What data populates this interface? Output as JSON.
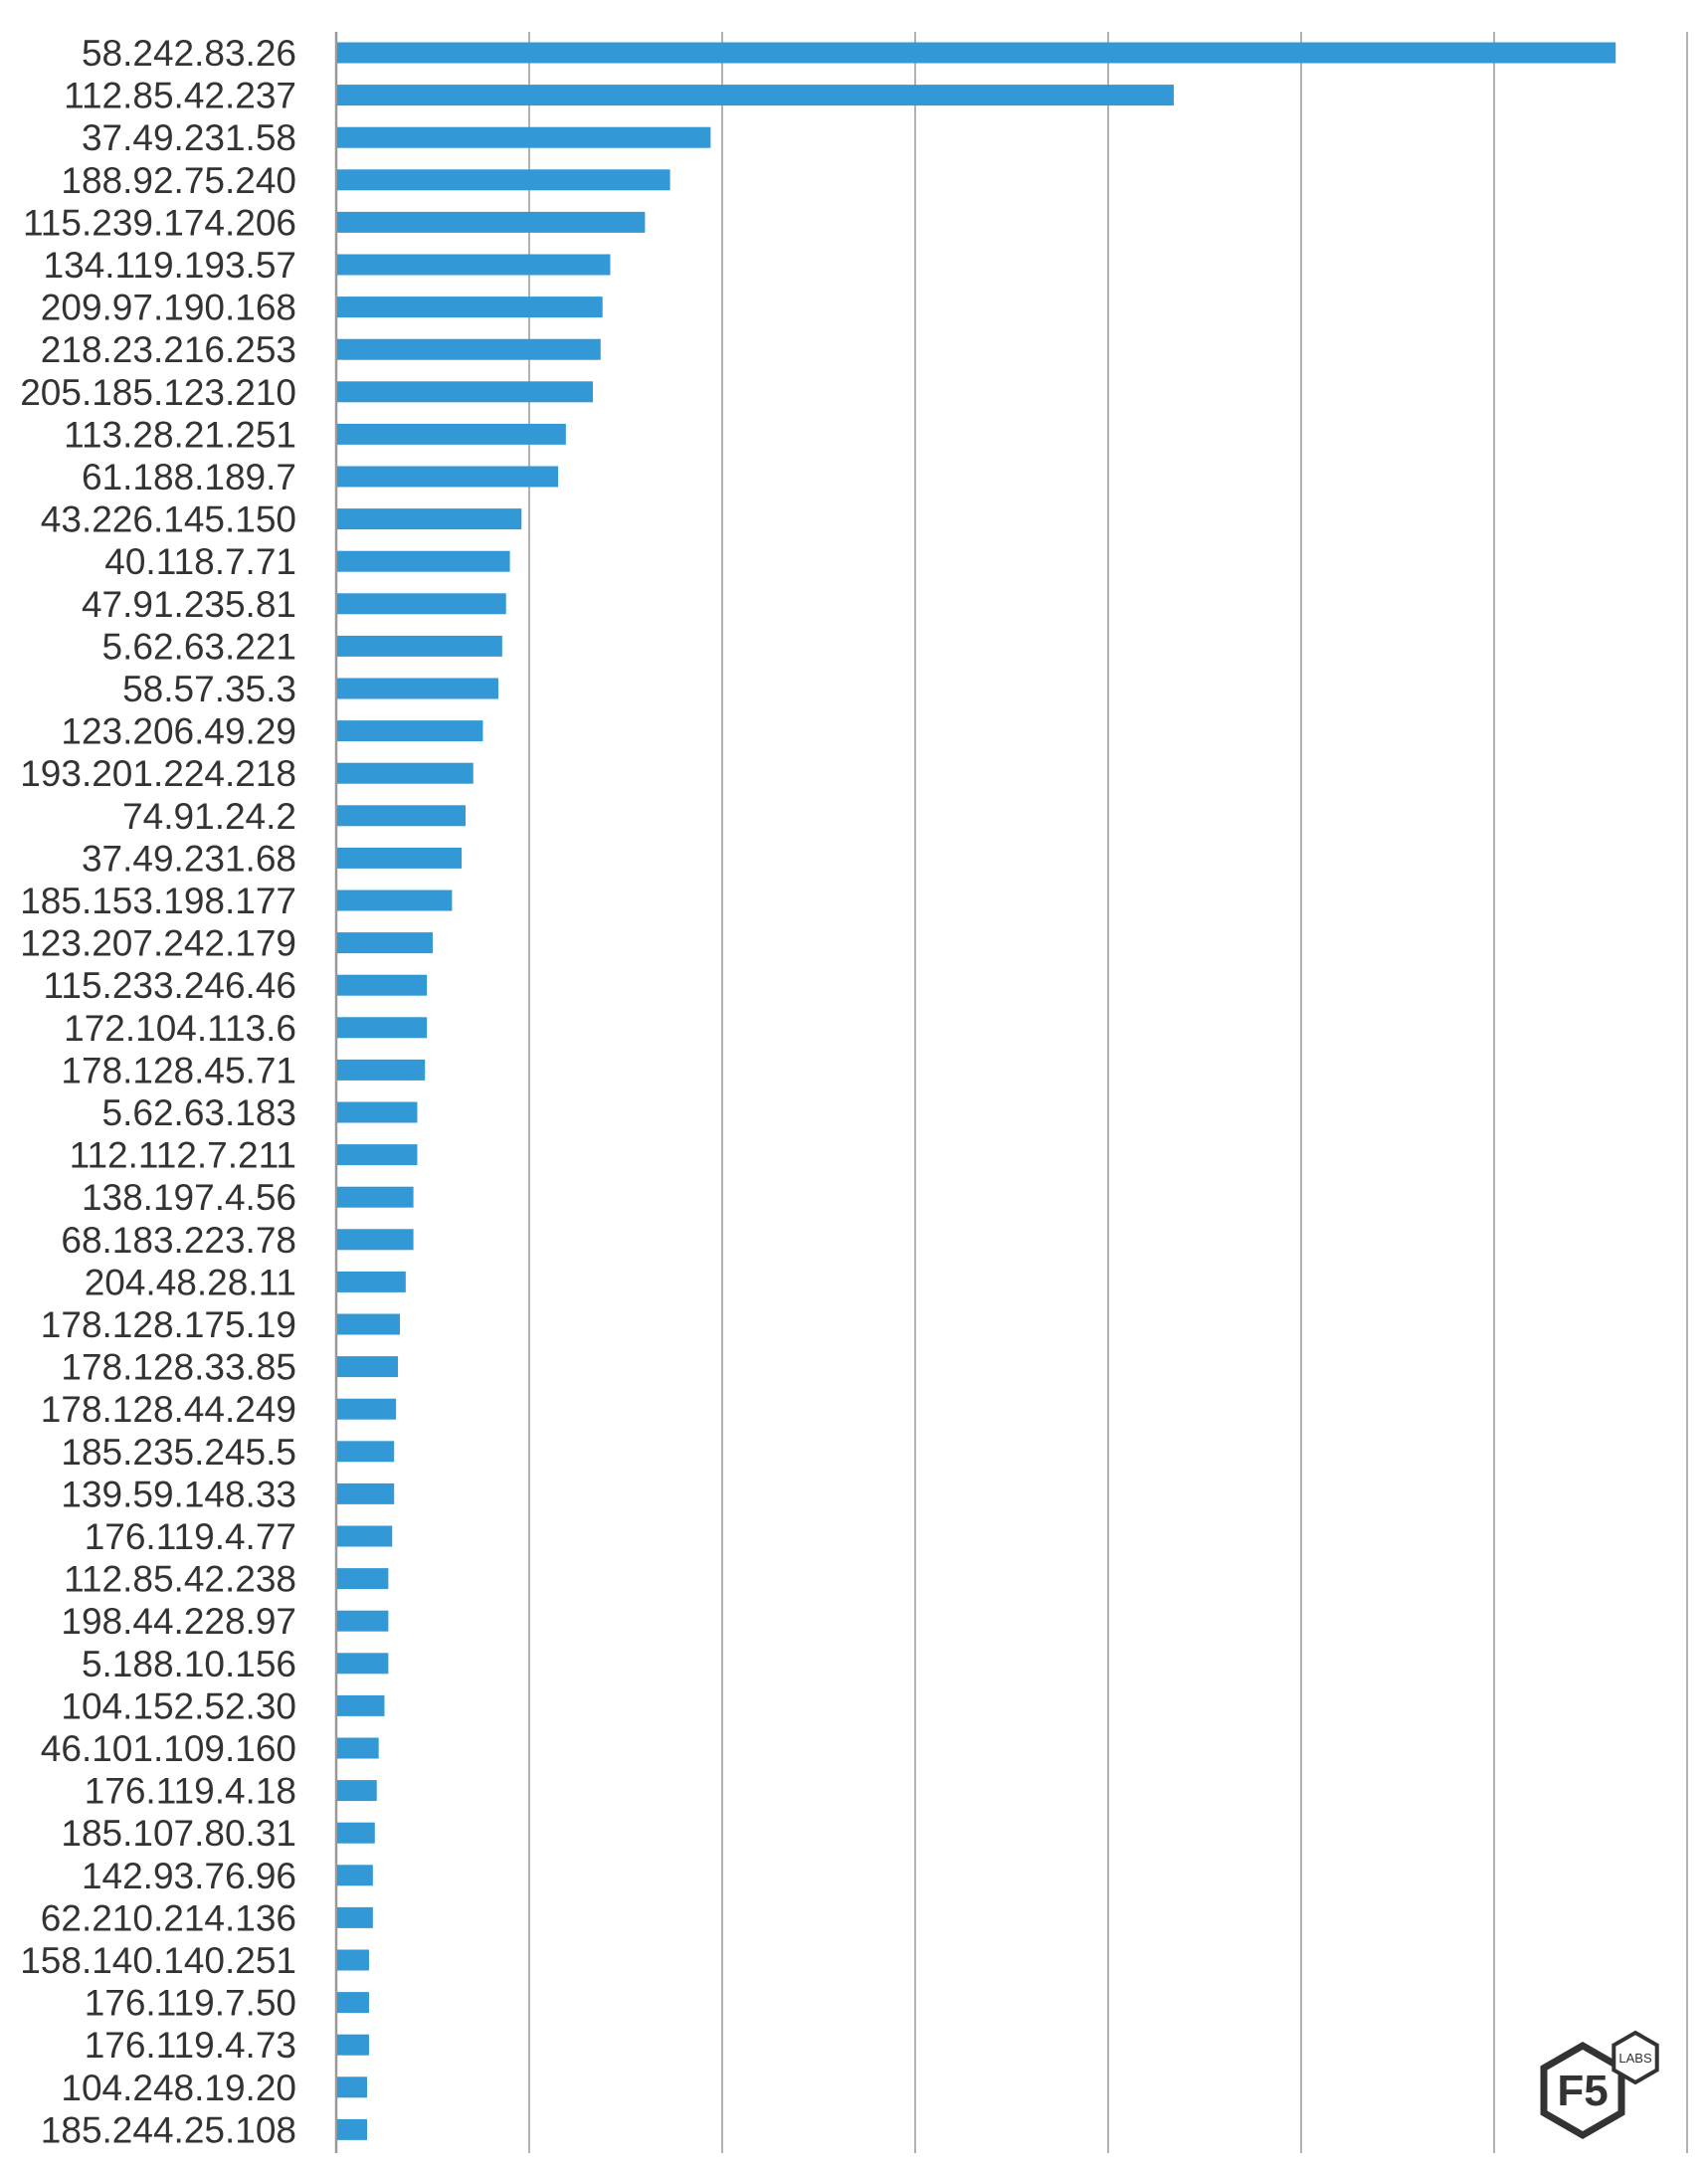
{
  "chart_data": {
    "type": "bar",
    "orientation": "horizontal",
    "title": "",
    "xlabel": "",
    "ylabel": "",
    "x_tick_labels_shown": false,
    "grid": "vertical",
    "xlim": [
      0,
      7
    ],
    "bar_color": "#3399d6",
    "gridline_color": "#999999",
    "label_color": "#333333",
    "categories": [
      "58.242.83.26",
      "112.85.42.237",
      "37.49.231.58",
      "188.92.75.240",
      "115.239.174.206",
      "134.119.193.57",
      "209.97.190.168",
      "218.23.216.253",
      "205.185.123.210",
      "113.28.21.251",
      "61.188.189.7",
      "43.226.145.150",
      "40.118.7.71",
      "47.91.235.81",
      "5.62.63.221",
      "58.57.35.3",
      "123.206.49.29",
      "193.201.224.218",
      "74.91.24.2",
      "37.49.231.68",
      "185.153.198.177",
      "123.207.242.179",
      "115.233.246.46",
      "172.104.113.6",
      "178.128.45.71",
      "5.62.63.183",
      "112.112.7.211",
      "138.197.4.56",
      "68.183.223.78",
      "204.48.28.11",
      "178.128.175.19",
      "178.128.33.85",
      "178.128.44.249",
      "185.235.245.5",
      "139.59.148.33",
      "176.119.4.77",
      "112.85.42.238",
      "198.44.228.97",
      "5.188.10.156",
      "104.152.52.30",
      "46.101.109.160",
      "176.119.4.18",
      "185.107.80.31",
      "142.93.76.96",
      "62.210.214.136",
      "158.140.140.251",
      "176.119.7.50",
      "176.119.4.73",
      "104.248.19.20",
      "185.244.25.108"
    ],
    "values": [
      6.63,
      4.34,
      1.94,
      1.73,
      1.6,
      1.42,
      1.38,
      1.37,
      1.33,
      1.19,
      1.15,
      0.96,
      0.9,
      0.88,
      0.86,
      0.84,
      0.76,
      0.71,
      0.67,
      0.65,
      0.6,
      0.5,
      0.47,
      0.47,
      0.46,
      0.42,
      0.42,
      0.4,
      0.4,
      0.36,
      0.33,
      0.32,
      0.31,
      0.3,
      0.3,
      0.29,
      0.27,
      0.27,
      0.27,
      0.25,
      0.22,
      0.21,
      0.2,
      0.19,
      0.19,
      0.17,
      0.17,
      0.17,
      0.16,
      0.16
    ]
  },
  "logo": {
    "main_text": "F5",
    "badge_text": "LABS",
    "color": "#333333"
  }
}
